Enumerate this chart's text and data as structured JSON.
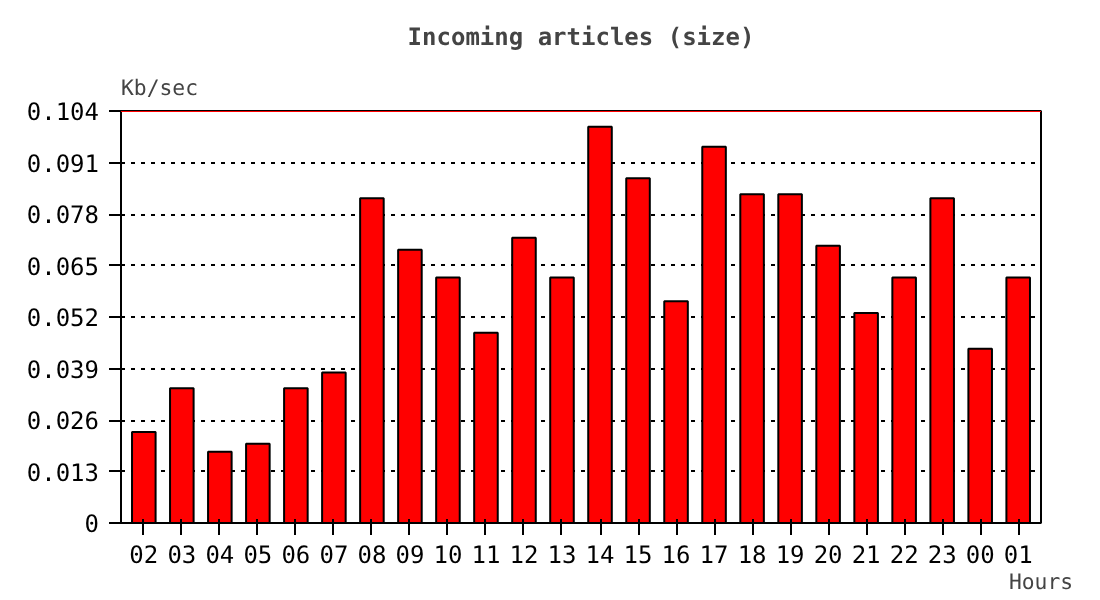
{
  "chart_data": {
    "type": "bar",
    "title": "Incoming articles (size)",
    "ylabel": "Kb/sec",
    "xlabel": "Hours",
    "categories": [
      "02",
      "03",
      "04",
      "05",
      "06",
      "07",
      "08",
      "09",
      "10",
      "11",
      "12",
      "13",
      "14",
      "15",
      "16",
      "17",
      "18",
      "19",
      "20",
      "21",
      "22",
      "23",
      "00",
      "01"
    ],
    "values": [
      0.023,
      0.034,
      0.018,
      0.02,
      0.034,
      0.038,
      0.082,
      0.069,
      0.062,
      0.048,
      0.072,
      0.062,
      0.1,
      0.087,
      0.056,
      0.095,
      0.083,
      0.083,
      0.07,
      0.053,
      0.062,
      0.082,
      0.044,
      0.062
    ],
    "color": "#ff0000",
    "ylim": [
      0,
      0.104
    ],
    "yticks": [
      "0",
      0.013,
      0.026,
      0.039,
      0.052,
      0.065,
      0.078,
      0.091,
      0.104
    ],
    "ref_lines": [
      {
        "axis": "y",
        "value": 0.104,
        "color": "#ff0000"
      }
    ],
    "grid": "y",
    "line_style": "dotted"
  }
}
